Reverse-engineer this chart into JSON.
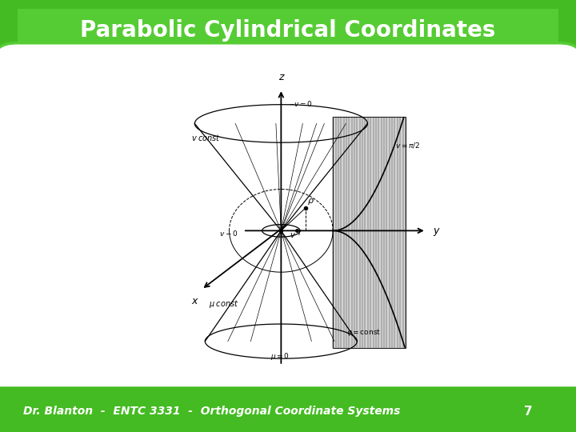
{
  "title": "Parabolic Cylindrical Coordinates",
  "footer_text": "Dr. Blanton  -  ENTC 3331  -  Orthogonal Coordinate Systems",
  "footer_number": "7",
  "bg_green": "#44bb22",
  "bg_green_dark": "#33aa11",
  "bg_green_light": "#66cc44",
  "content_bg": "#ffffff",
  "title_text_color": "#ffffff",
  "footer_text_color": "#ffffff",
  "title_fontsize": 20,
  "footer_fontsize": 10,
  "fig_width": 7.2,
  "fig_height": 5.4,
  "dpi": 100
}
